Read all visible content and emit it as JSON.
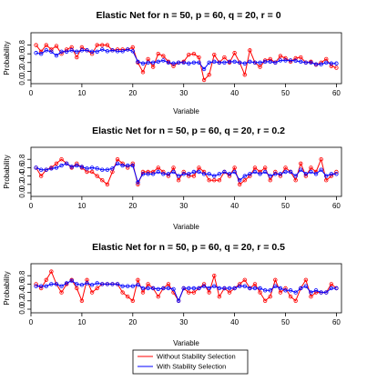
{
  "colors": {
    "without": "#ff0000",
    "with": "#0000ff",
    "axis": "#000000"
  },
  "legend": {
    "placement": "bottom-center",
    "labels": [
      "Without Stability Selection",
      "With Stability Selection"
    ]
  },
  "chart_data": [
    {
      "type": "line",
      "title": "Elastic Net for n = 50, p = 60, q = 20, r = 0",
      "xlabel": "Variable",
      "ylabel": "Probability",
      "xlim": [
        0,
        61
      ],
      "ylim": [
        0,
        1
      ],
      "xticks": [
        0,
        10,
        20,
        30,
        40,
        50,
        60
      ],
      "yticks": [
        0.0,
        0.2,
        0.4,
        0.6,
        0.8
      ],
      "ytick_labels": [
        "0.0",
        "0.2",
        "0.4",
        "0.6",
        "0.8"
      ],
      "x": [
        1,
        2,
        3,
        4,
        5,
        6,
        7,
        8,
        9,
        10,
        11,
        12,
        13,
        14,
        15,
        16,
        17,
        18,
        19,
        20,
        21,
        22,
        23,
        24,
        25,
        26,
        27,
        28,
        29,
        30,
        31,
        32,
        33,
        34,
        35,
        36,
        37,
        38,
        39,
        40,
        41,
        42,
        43,
        44,
        45,
        46,
        47,
        48,
        49,
        50,
        51,
        52,
        53,
        54,
        55,
        56,
        57,
        58,
        59,
        60
      ],
      "series": [
        {
          "name": "Without Stability Selection",
          "values": [
            0.8,
            0.65,
            0.8,
            0.7,
            0.78,
            0.6,
            0.7,
            0.75,
            0.52,
            0.75,
            0.68,
            0.6,
            0.8,
            0.8,
            0.8,
            0.68,
            0.7,
            0.7,
            0.7,
            0.75,
            0.4,
            0.18,
            0.48,
            0.3,
            0.6,
            0.55,
            0.42,
            0.32,
            0.4,
            0.42,
            0.58,
            0.6,
            0.52,
            0.0,
            0.12,
            0.58,
            0.4,
            0.52,
            0.4,
            0.62,
            0.4,
            0.12,
            0.68,
            0.4,
            0.3,
            0.45,
            0.48,
            0.4,
            0.55,
            0.5,
            0.42,
            0.5,
            0.52,
            0.4,
            0.42,
            0.35,
            0.4,
            0.48,
            0.32,
            0.28
          ]
        },
        {
          "name": "With Stability Selection",
          "values": [
            0.62,
            0.6,
            0.68,
            0.65,
            0.56,
            0.65,
            0.65,
            0.68,
            0.65,
            0.68,
            0.68,
            0.65,
            0.65,
            0.7,
            0.66,
            0.68,
            0.66,
            0.66,
            0.7,
            0.66,
            0.42,
            0.38,
            0.4,
            0.4,
            0.42,
            0.45,
            0.4,
            0.38,
            0.4,
            0.4,
            0.38,
            0.4,
            0.4,
            0.25,
            0.4,
            0.42,
            0.4,
            0.4,
            0.42,
            0.42,
            0.4,
            0.38,
            0.42,
            0.4,
            0.4,
            0.42,
            0.42,
            0.4,
            0.45,
            0.45,
            0.45,
            0.44,
            0.42,
            0.4,
            0.4,
            0.36,
            0.36,
            0.4,
            0.38,
            0.38
          ]
        }
      ]
    },
    {
      "type": "line",
      "title": "Elastic Net for n = 50, p = 60, q = 20, r = 0.2",
      "xlabel": "Variable",
      "ylabel": "Probability",
      "xlim": [
        0,
        61
      ],
      "ylim": [
        0,
        1
      ],
      "xticks": [
        0,
        10,
        20,
        30,
        40,
        50,
        60
      ],
      "yticks": [
        0.0,
        0.2,
        0.4,
        0.6,
        0.8
      ],
      "ytick_labels": [
        "0.0",
        "0.2",
        "0.4",
        "0.6",
        "0.8"
      ],
      "x": [
        1,
        2,
        3,
        4,
        5,
        6,
        7,
        8,
        9,
        10,
        11,
        12,
        13,
        14,
        15,
        16,
        17,
        18,
        19,
        20,
        21,
        22,
        23,
        24,
        25,
        26,
        27,
        28,
        29,
        30,
        31,
        32,
        33,
        34,
        35,
        36,
        37,
        38,
        39,
        40,
        41,
        42,
        43,
        44,
        45,
        46,
        47,
        48,
        49,
        50,
        51,
        52,
        53,
        54,
        55,
        56,
        57,
        58,
        59,
        60
      ],
      "series": [
        {
          "name": "Without Stability Selection",
          "values": [
            0.6,
            0.4,
            0.55,
            0.6,
            0.7,
            0.8,
            0.7,
            0.6,
            0.7,
            0.6,
            0.5,
            0.5,
            0.4,
            0.3,
            0.2,
            0.5,
            0.8,
            0.7,
            0.6,
            0.7,
            0.2,
            0.5,
            0.5,
            0.5,
            0.6,
            0.5,
            0.4,
            0.6,
            0.3,
            0.5,
            0.4,
            0.4,
            0.6,
            0.5,
            0.3,
            0.3,
            0.3,
            0.5,
            0.4,
            0.6,
            0.2,
            0.3,
            0.4,
            0.6,
            0.5,
            0.6,
            0.3,
            0.5,
            0.4,
            0.6,
            0.5,
            0.3,
            0.7,
            0.4,
            0.6,
            0.5,
            0.8,
            0.3,
            0.4,
            0.5
          ]
        },
        {
          "name": "With Stability Selection",
          "values": [
            0.6,
            0.55,
            0.55,
            0.58,
            0.6,
            0.65,
            0.7,
            0.62,
            0.65,
            0.62,
            0.58,
            0.6,
            0.58,
            0.55,
            0.55,
            0.58,
            0.7,
            0.65,
            0.65,
            0.65,
            0.25,
            0.45,
            0.45,
            0.45,
            0.5,
            0.45,
            0.45,
            0.5,
            0.4,
            0.45,
            0.45,
            0.5,
            0.5,
            0.45,
            0.45,
            0.4,
            0.45,
            0.5,
            0.45,
            0.5,
            0.3,
            0.4,
            0.45,
            0.5,
            0.45,
            0.5,
            0.4,
            0.45,
            0.45,
            0.5,
            0.5,
            0.4,
            0.55,
            0.45,
            0.5,
            0.45,
            0.55,
            0.4,
            0.45,
            0.45
          ]
        }
      ]
    },
    {
      "type": "line",
      "title": "Elastic Net for n = 50, p = 60, q = 20, r = 0.5",
      "xlabel": "Variable",
      "ylabel": "Probability",
      "xlim": [
        0,
        61
      ],
      "ylim": [
        0,
        1
      ],
      "xticks": [
        0,
        10,
        20,
        30,
        40,
        50,
        60
      ],
      "yticks": [
        0.0,
        0.2,
        0.4,
        0.6,
        0.8
      ],
      "ytick_labels": [
        "0.0",
        "0.2",
        "0.4",
        "0.6",
        "0.8"
      ],
      "x": [
        1,
        2,
        3,
        4,
        5,
        6,
        7,
        8,
        9,
        10,
        11,
        12,
        13,
        14,
        15,
        16,
        17,
        18,
        19,
        20,
        21,
        22,
        23,
        24,
        25,
        26,
        27,
        28,
        29,
        30,
        31,
        32,
        33,
        34,
        35,
        36,
        37,
        38,
        39,
        40,
        41,
        42,
        43,
        44,
        45,
        46,
        47,
        48,
        49,
        50,
        51,
        52,
        53,
        54,
        55,
        56,
        57,
        58,
        59,
        60
      ],
      "series": [
        {
          "name": "Without Stability Selection",
          "values": [
            0.6,
            0.5,
            0.7,
            0.9,
            0.6,
            0.4,
            0.6,
            0.7,
            0.5,
            0.2,
            0.7,
            0.4,
            0.5,
            0.6,
            0.6,
            0.6,
            0.6,
            0.4,
            0.3,
            0.2,
            0.7,
            0.4,
            0.6,
            0.5,
            0.3,
            0.5,
            0.6,
            0.4,
            0.2,
            0.5,
            0.4,
            0.4,
            0.5,
            0.6,
            0.4,
            0.8,
            0.3,
            0.5,
            0.4,
            0.5,
            0.6,
            0.7,
            0.5,
            0.6,
            0.4,
            0.2,
            0.3,
            0.7,
            0.4,
            0.5,
            0.3,
            0.2,
            0.5,
            0.7,
            0.3,
            0.4,
            0.4,
            0.4,
            0.6,
            0.5
          ]
        },
        {
          "name": "With Stability Selection",
          "values": [
            0.55,
            0.55,
            0.55,
            0.6,
            0.6,
            0.55,
            0.62,
            0.68,
            0.6,
            0.58,
            0.62,
            0.58,
            0.62,
            0.6,
            0.6,
            0.6,
            0.6,
            0.55,
            0.55,
            0.55,
            0.58,
            0.5,
            0.5,
            0.5,
            0.48,
            0.5,
            0.5,
            0.48,
            0.2,
            0.5,
            0.5,
            0.5,
            0.5,
            0.55,
            0.5,
            0.55,
            0.5,
            0.5,
            0.5,
            0.5,
            0.55,
            0.55,
            0.5,
            0.5,
            0.5,
            0.45,
            0.45,
            0.55,
            0.5,
            0.45,
            0.45,
            0.4,
            0.5,
            0.55,
            0.4,
            0.45,
            0.4,
            0.4,
            0.5,
            0.5
          ]
        }
      ]
    }
  ]
}
